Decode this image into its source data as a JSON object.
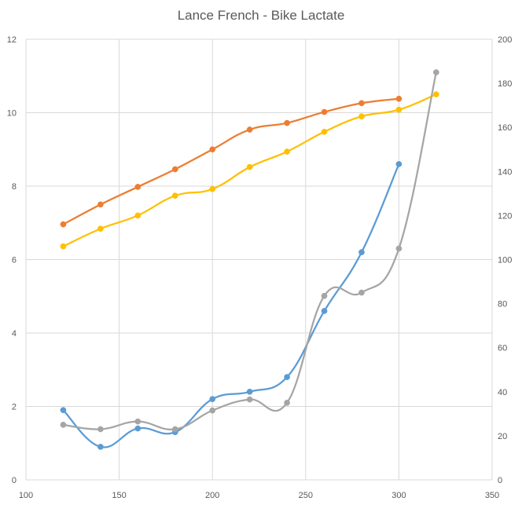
{
  "chart_data": {
    "type": "line",
    "title": "Lance French - Bike Lactate",
    "xlabel": "",
    "ylabel": "",
    "y2label": "",
    "xlim": [
      100,
      350
    ],
    "ylim": [
      0,
      12
    ],
    "y2lim": [
      0,
      200
    ],
    "x_ticks": [
      100,
      150,
      200,
      250,
      300,
      350
    ],
    "y_ticks": [
      0,
      2,
      4,
      6,
      8,
      10,
      12
    ],
    "y2_ticks": [
      0,
      20,
      40,
      60,
      80,
      100,
      120,
      140,
      160,
      180,
      200
    ],
    "grid": true,
    "legend": "none",
    "series": [
      {
        "axis": "right",
        "color": "#ED7D31",
        "x": [
          120,
          140,
          160,
          180,
          200,
          220,
          240,
          260,
          280,
          300
        ],
        "values": [
          116,
          125,
          133,
          141,
          150,
          159,
          162,
          167,
          171,
          173
        ]
      },
      {
        "axis": "right",
        "color": "#FFC000",
        "x": [
          120,
          140,
          160,
          180,
          200,
          220,
          240,
          260,
          280,
          300,
          320
        ],
        "values": [
          106,
          114,
          120,
          129,
          132,
          142,
          149,
          158,
          165,
          168,
          175
        ]
      },
      {
        "axis": "left",
        "color": "#5B9BD5",
        "x": [
          120,
          140,
          160,
          180,
          200,
          220,
          240,
          260,
          280,
          300
        ],
        "values": [
          1.9,
          0.9,
          1.4,
          1.3,
          2.2,
          2.4,
          2.8,
          4.6,
          6.2,
          8.6
        ]
      },
      {
        "axis": "right",
        "color": "#A5A5A5",
        "x": [
          120,
          140,
          160,
          180,
          200,
          220,
          240,
          260,
          280,
          300,
          320
        ],
        "values": [
          25,
          23,
          26.5,
          23,
          31.5,
          36.5,
          35,
          83.5,
          85,
          105,
          185
        ]
      }
    ]
  }
}
